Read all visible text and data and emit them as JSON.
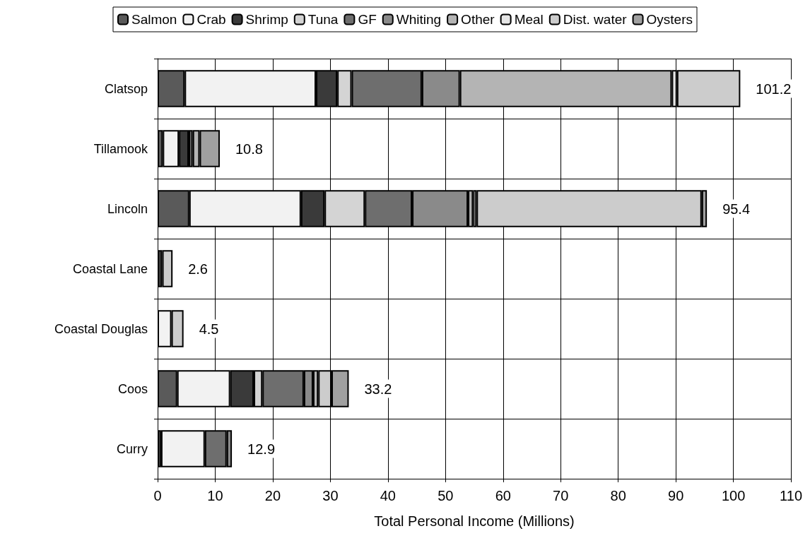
{
  "chart_data": {
    "type": "bar",
    "orientation": "horizontal",
    "stacked": true,
    "xlabel": "Total Personal Income (Millions)",
    "categories": [
      "Clatsop",
      "Tillamook",
      "Lincoln",
      "Coastal Lane",
      "Coastal Douglas",
      "Coos",
      "Curry"
    ],
    "series": [
      {
        "name": "Salmon",
        "color": "#5a5a5a",
        "values": [
          4.7,
          0.9,
          5.5,
          null,
          null,
          3.4,
          0.6
        ]
      },
      {
        "name": "Crab",
        "color": "#f2f2f2",
        "values": [
          22.8,
          2.8,
          19.4,
          null,
          2.4,
          9.2,
          7.6
        ]
      },
      {
        "name": "Shrimp",
        "color": "#3a3a3a",
        "values": [
          3.7,
          1.7,
          4.1,
          0.8,
          null,
          4.1,
          null
        ]
      },
      {
        "name": "Tuna",
        "color": "#d4d4d4",
        "values": [
          2.5,
          null,
          7.0,
          null,
          null,
          1.5,
          null
        ]
      },
      {
        "name": "GF",
        "color": "#6e6e6e",
        "values": [
          12.2,
          0.7,
          8.2,
          null,
          null,
          7.2,
          3.8
        ]
      },
      {
        "name": "Whiting",
        "color": "#8a8a8a",
        "values": [
          6.6,
          null,
          9.7,
          null,
          null,
          1.6,
          0.9
        ]
      },
      {
        "name": "Other",
        "color": "#b4b4b4",
        "values": [
          36.8,
          1.2,
          0.9,
          null,
          null,
          0.9,
          null
        ]
      },
      {
        "name": "Meal",
        "color": "#e6e6e6",
        "values": [
          0.9,
          null,
          0.6,
          null,
          null,
          null,
          null
        ]
      },
      {
        "name": "Dist. water",
        "color": "#cccccc",
        "values": [
          11.0,
          null,
          39.1,
          1.8,
          2.1,
          2.3,
          null
        ]
      },
      {
        "name": "Oysters",
        "color": "#a0a0a0",
        "values": [
          null,
          3.5,
          0.9,
          null,
          null,
          3.0,
          null
        ]
      }
    ],
    "totals": [
      "101.2",
      "10.8",
      "95.4",
      "2.6",
      "4.5",
      "33.2",
      "12.9"
    ],
    "xlim": [
      0,
      110
    ],
    "xticks": [
      0,
      10,
      20,
      30,
      40,
      50,
      60,
      70,
      80,
      90,
      100,
      110
    ],
    "grid": true,
    "legend": "top"
  }
}
